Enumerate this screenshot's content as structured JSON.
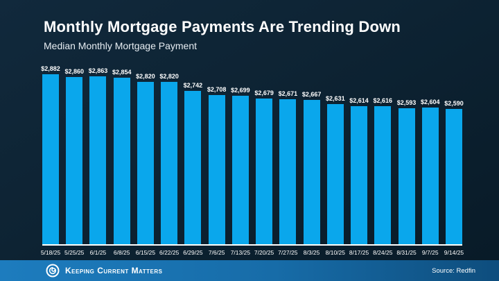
{
  "header": {
    "title": "Monthly Mortgage Payments Are Trending Down",
    "subtitle": "Median Monthly Mortgage Payment"
  },
  "chart_data": {
    "type": "bar",
    "title": "Monthly Mortgage Payments Are Trending Down",
    "subtitle": "Median Monthly Mortgage Payment",
    "categories": [
      "5/18/25",
      "5/25/25",
      "6/1/25",
      "6/8/25",
      "6/15/25",
      "6/22/25",
      "6/29/25",
      "7/6/25",
      "7/13/25",
      "7/20/25",
      "7/27/25",
      "8/3/25",
      "8/10/25",
      "8/17/25",
      "8/24/25",
      "8/31/25",
      "9/7/25",
      "9/14/25"
    ],
    "values": [
      2882,
      2860,
      2863,
      2854,
      2820,
      2820,
      2742,
      2708,
      2699,
      2679,
      2671,
      2667,
      2631,
      2614,
      2616,
      2593,
      2604,
      2590
    ],
    "value_labels": [
      "$2,882",
      "$2,860",
      "$2,863",
      "$2,854",
      "$2,820",
      "$2,820",
      "$2,742",
      "$2,708",
      "$2,699",
      "$2,679",
      "$2,671",
      "$2,667",
      "$2,631",
      "$2,614",
      "$2,616",
      "$2,593",
      "$2,604",
      "$2,590"
    ],
    "xlabel": "",
    "ylabel": "",
    "ylim": [
      1450,
      2882
    ],
    "grid": false,
    "legend": false,
    "bar_color": "#0aa7ec",
    "baseline_color": "#ffffff",
    "label_color": "#ffffff"
  },
  "footer": {
    "brand": "Keeping Current Matters",
    "source": "Source: Redfin",
    "logo_icon": "kcm-spiral-logo",
    "background_left": "#1d7cbe",
    "background_right": "#0e4d7d"
  },
  "colors": {
    "background": "#0d2333",
    "title_text": "#ffffff",
    "subtitle_text": "#e8eef3"
  }
}
